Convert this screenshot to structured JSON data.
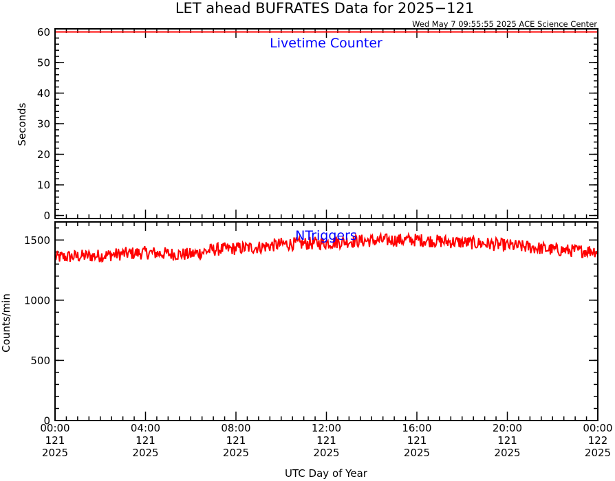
{
  "header": {
    "title": "LET ahead BUFRATES Data for 2025−121",
    "timestamp": "Wed May  7 09:55:55 2025 ACE Science Center"
  },
  "colors": {
    "series": "#ff0000",
    "panel_label": "#0000ff",
    "axes": "#000000"
  },
  "chart_data": [
    {
      "type": "line",
      "panel_label": "Livetime Counter",
      "ylabel": "Seconds",
      "ylim": [
        -1,
        61
      ],
      "yticks": [
        0,
        10,
        20,
        30,
        40,
        50,
        60
      ],
      "ytick_labels": [
        "0",
        "10",
        "20",
        "30",
        "40",
        "50",
        "60"
      ],
      "y_minor_step": 2,
      "xlim": [
        0,
        24
      ],
      "series": [
        {
          "x": [
            0,
            4,
            8,
            12,
            16,
            20,
            24
          ],
          "y": [
            60,
            60,
            60,
            60,
            60,
            60,
            60
          ]
        }
      ]
    },
    {
      "type": "line",
      "panel_label": "NTriggers",
      "ylabel": "Counts/min",
      "ylim": [
        0,
        1650
      ],
      "yticks": [
        0,
        500,
        1000,
        1500
      ],
      "ytick_labels": [
        "0",
        "500",
        "1000",
        "1500"
      ],
      "y_minor_step": 100,
      "xlim": [
        0,
        24
      ],
      "xlabel": "UTC Day of Year",
      "xticks": [
        0,
        4,
        8,
        12,
        16,
        20,
        24
      ],
      "xtick_labels": [
        [
          "00:00",
          "121",
          "2025"
        ],
        [
          "04:00",
          "121",
          "2025"
        ],
        [
          "08:00",
          "121",
          "2025"
        ],
        [
          "12:00",
          "121",
          "2025"
        ],
        [
          "16:00",
          "121",
          "2025"
        ],
        [
          "20:00",
          "121",
          "2025"
        ],
        [
          "00:00",
          "122",
          "2025"
        ]
      ],
      "x_minor_step": 0.5,
      "series": [
        {
          "x": [
            0,
            1,
            2,
            3,
            4,
            5,
            6,
            7,
            8,
            9,
            10,
            11,
            12,
            13,
            14,
            15,
            16,
            17,
            18,
            19,
            20,
            21,
            22,
            23,
            24
          ],
          "y": [
            1355,
            1365,
            1370,
            1385,
            1395,
            1385,
            1380,
            1420,
            1430,
            1440,
            1465,
            1470,
            1475,
            1490,
            1495,
            1500,
            1500,
            1490,
            1480,
            1470,
            1455,
            1440,
            1420,
            1410,
            1410
          ]
        }
      ],
      "noise_amplitude": 55
    }
  ]
}
